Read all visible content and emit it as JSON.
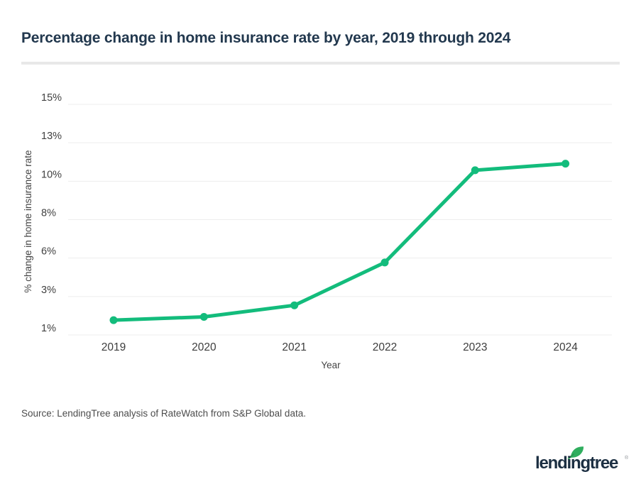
{
  "title": "Percentage change in home insurance rate by year, 2019 through 2024",
  "source": "Source: LendingTree analysis of RateWatch from S&P Global data.",
  "logo": {
    "brand": "lendingtree",
    "trademark": "®",
    "navy": "#1c2f42",
    "leaf_green": "#2fae5e"
  },
  "colors": {
    "accent_green": "#13bc7c",
    "title_navy": "#22384e",
    "gridline_gray": "#ededed",
    "divider_gray": "#e8e8e8"
  },
  "chart_data": {
    "type": "line",
    "title": "Percentage change in home insurance rate by year, 2019 through 2024",
    "categories": [
      "2019",
      "2020",
      "2021",
      "2022",
      "2023",
      "2024"
    ],
    "series": [
      {
        "name": "% change in home insurance rate",
        "values": [
          1.9,
          2.1,
          2.8,
          5.4,
          11.0,
          11.4
        ],
        "color": "#13bc7c",
        "marker": "circle"
      }
    ],
    "xlabel": "Year",
    "ylabel": "% change in home insurance rate",
    "ylim": [
      1,
      15
    ],
    "yticks": [
      {
        "value": 1,
        "label": "1%"
      },
      {
        "value": 3.333,
        "label": "3%"
      },
      {
        "value": 5.667,
        "label": "6%"
      },
      {
        "value": 8,
        "label": "8%"
      },
      {
        "value": 10.333,
        "label": "10%"
      },
      {
        "value": 12.667,
        "label": "13%"
      },
      {
        "value": 15,
        "label": "15%"
      }
    ],
    "grid": "horizontal",
    "legend": "none"
  }
}
